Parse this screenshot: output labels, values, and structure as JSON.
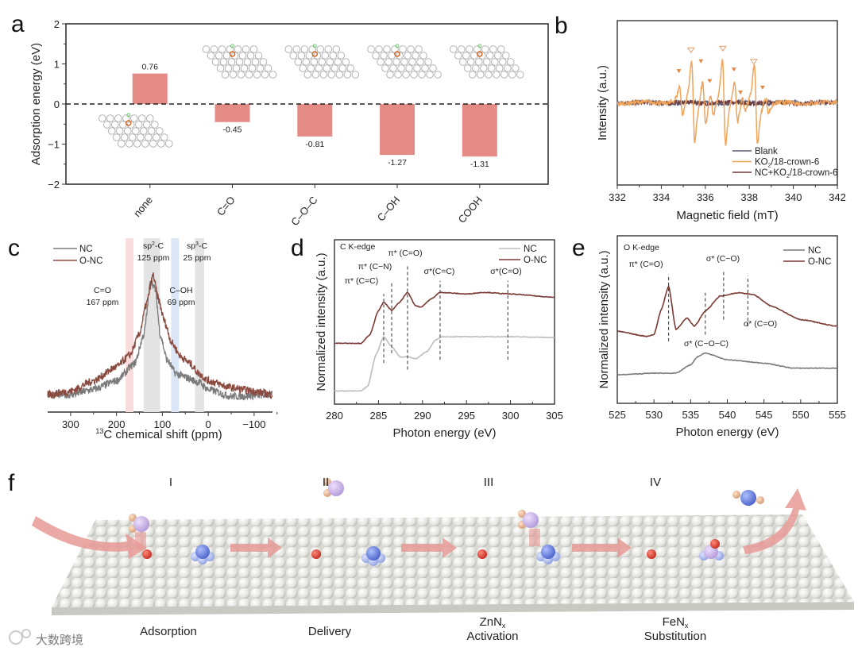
{
  "panel_letters": {
    "a": "a",
    "b": "b",
    "c": "c",
    "d": "d",
    "e": "e",
    "f": "f"
  },
  "colors": {
    "bar": "#e58b86",
    "nc_c": "#7b7b7b",
    "onc_c": "#8a4a40",
    "nc_d": "#bdbdbd",
    "onc_d": "#7a3933",
    "blank": "#5d5a78",
    "ko2": "#f0a35a",
    "nc_ko2": "#6e3b3b",
    "arrow": "#e89a96"
  },
  "chart_data": [
    {
      "id": "a",
      "type": "bar",
      "categories": [
        "none",
        "C=O",
        "C–O–C",
        "C–OH",
        "COOH"
      ],
      "values": [
        0.76,
        -0.45,
        -0.81,
        -1.27,
        -1.31
      ],
      "value_labels": [
        "0.76",
        "-0.45",
        "-0.81",
        "-1.27",
        "-1.31"
      ],
      "ylabel": "Adsorption energy (eV)",
      "ylim": [
        -2,
        2
      ],
      "yticks": [
        "−2",
        "−1",
        "0",
        "1",
        "2"
      ],
      "reference_line": 0
    },
    {
      "id": "b",
      "type": "line",
      "xlabel": "Magnetic field (mT)",
      "ylabel": "Intensity (a.u.)",
      "xlim": [
        332,
        342
      ],
      "ylim": [
        -1,
        1
      ],
      "xticks": [
        "332",
        "334",
        "336",
        "338",
        "340",
        "342"
      ],
      "series": [
        {
          "name": "Blank",
          "name_parts": [
            "Blank",
            "",
            ""
          ],
          "color_key": "blank",
          "lines": []
        },
        {
          "name": "KO2/18-crown-6",
          "name_parts": [
            "KO",
            "2",
            "/18-crown-6"
          ],
          "color_key": "ko2",
          "lines": [
            [
              334.9,
              0.28
            ],
            [
              335.45,
              0.78
            ],
            [
              335.95,
              0.42
            ],
            [
              336.3,
              0.2
            ],
            [
              336.85,
              0.8
            ],
            [
              337.4,
              0.4
            ],
            [
              337.75,
              0.14
            ],
            [
              338.3,
              0.74
            ],
            [
              338.8,
              0.16
            ]
          ]
        },
        {
          "name": "NC+KO2/18-crown-6",
          "name_parts": [
            "NC+KO",
            "2",
            "/18-crown-6"
          ],
          "color_key": "nc_ko2",
          "lines": []
        }
      ],
      "markers_filled": [
        [
          334.8,
          0.38
        ],
        [
          335.8,
          0.5
        ],
        [
          336.2,
          0.26
        ],
        [
          337.3,
          0.4
        ],
        [
          337.6,
          0.12
        ],
        [
          338.6,
          0.18
        ]
      ],
      "markers_open": [
        [
          335.35,
          0.64
        ],
        [
          336.8,
          0.66
        ],
        [
          338.2,
          0.5
        ]
      ]
    },
    {
      "id": "c",
      "type": "line",
      "xlabel_sup": "13",
      "xlabel": "C chemical shift (ppm)",
      "xlim": [
        350,
        -140
      ],
      "ylim": [
        0,
        1
      ],
      "xticks": [
        [
          "300",
          300
        ],
        [
          "200",
          200
        ],
        [
          "100",
          100
        ],
        [
          "0",
          0
        ],
        [
          "−100",
          -100
        ]
      ],
      "legend": [
        "NC",
        "O-NC"
      ],
      "bands": [
        {
          "name": "C=O",
          "value": "167 ppm",
          "range": [
            163,
            180
          ],
          "color": "#f9dcdc",
          "text_color": "#e8a7a2"
        },
        {
          "name_parts": [
            "sp",
            "2",
            "-C"
          ],
          "value": "125 ppm",
          "range": [
            105,
            141
          ],
          "color": "#e4e4e4",
          "text_color": "#222"
        },
        {
          "name": "C–OH",
          "value": "69 ppm",
          "range": [
            64,
            81
          ],
          "color": "#dbe6f7",
          "text_color": "#8fb2d8"
        },
        {
          "name_parts": [
            "sp",
            "3",
            "-C"
          ],
          "value": "25 ppm",
          "range": [
            9,
            29
          ],
          "color": "#e4e4e4",
          "text_color": "#222"
        }
      ],
      "series": [
        {
          "name": "NC",
          "color_key": "nc_c",
          "points": [
            [
              350,
              0.1
            ],
            [
              300,
              0.1
            ],
            [
              250,
              0.13
            ],
            [
              200,
              0.18
            ],
            [
              160,
              0.28
            ],
            [
              140,
              0.45
            ],
            [
              125,
              0.76
            ],
            [
              115,
              0.7
            ],
            [
              105,
              0.45
            ],
            [
              90,
              0.3
            ],
            [
              70,
              0.22
            ],
            [
              50,
              0.2
            ],
            [
              20,
              0.17
            ],
            [
              0,
              0.13
            ],
            [
              -50,
              0.09
            ],
            [
              -140,
              0.1
            ]
          ]
        },
        {
          "name": "O-NC",
          "color_key": "onc_c",
          "points": [
            [
              350,
              0.1
            ],
            [
              300,
              0.12
            ],
            [
              250,
              0.18
            ],
            [
              200,
              0.26
            ],
            [
              170,
              0.33
            ],
            [
              150,
              0.45
            ],
            [
              135,
              0.62
            ],
            [
              120,
              0.79
            ],
            [
              110,
              0.66
            ],
            [
              95,
              0.52
            ],
            [
              80,
              0.4
            ],
            [
              60,
              0.32
            ],
            [
              40,
              0.28
            ],
            [
              20,
              0.22
            ],
            [
              0,
              0.18
            ],
            [
              -50,
              0.14
            ],
            [
              -100,
              0.12
            ],
            [
              -140,
              0.1
            ]
          ]
        }
      ]
    },
    {
      "id": "d",
      "type": "line",
      "xlabel": "Photon energy (eV)",
      "ylabel": "Normalized intensity (a.u.)",
      "xlim": [
        280,
        305
      ],
      "ylim": [
        0,
        1
      ],
      "xticks": [
        "280",
        "285",
        "290",
        "295",
        "300",
        "305"
      ],
      "title": "C K-edge",
      "legend": [
        "NC",
        "O-NC"
      ],
      "series": [
        {
          "name": "NC",
          "color_key": "nc_d",
          "points": [
            [
              280,
              0.08
            ],
            [
              283,
              0.08
            ],
            [
              283.8,
              0.11
            ],
            [
              284.7,
              0.3
            ],
            [
              285.6,
              0.41
            ],
            [
              286.5,
              0.35
            ],
            [
              287.5,
              0.285
            ],
            [
              288.3,
              0.29
            ],
            [
              289.2,
              0.275
            ],
            [
              290.5,
              0.32
            ],
            [
              291.5,
              0.39
            ],
            [
              292.2,
              0.41
            ],
            [
              295,
              0.41
            ],
            [
              300,
              0.41
            ],
            [
              305,
              0.405
            ]
          ]
        },
        {
          "name": "O-NC",
          "color_key": "onc_d",
          "points": [
            [
              280,
              0.37
            ],
            [
              283,
              0.37
            ],
            [
              284,
              0.42
            ],
            [
              285,
              0.57
            ],
            [
              285.6,
              0.62
            ],
            [
              286.5,
              0.57
            ],
            [
              287.4,
              0.62
            ],
            [
              288.3,
              0.68
            ],
            [
              289.2,
              0.6
            ],
            [
              289.8,
              0.59
            ],
            [
              291,
              0.64
            ],
            [
              292,
              0.68
            ],
            [
              295,
              0.67
            ],
            [
              297,
              0.68
            ],
            [
              300,
              0.67
            ],
            [
              305,
              0.65
            ]
          ]
        }
      ],
      "dashed_lines": [
        [
          285.6,
          0.25,
          0.67
        ],
        [
          286.5,
          0.31,
          0.74
        ],
        [
          288.3,
          0.21,
          0.85
        ],
        [
          292,
          0.27,
          0.75
        ],
        [
          299.7,
          0.27,
          0.75
        ]
      ],
      "annotations": [
        "π* (C=O)",
        "π* (C−N)",
        "π* (C=C)",
        "σ*(C=C)",
        "σ*(C=O)"
      ]
    },
    {
      "id": "e",
      "type": "line",
      "xlabel": "Photon energy (eV)",
      "ylabel": "Normalized intensity (a.u.)",
      "xlim": [
        525,
        555
      ],
      "ylim": [
        0,
        1
      ],
      "xticks": [
        "525",
        "530",
        "535",
        "540",
        "545",
        "550",
        "555"
      ],
      "title": "O K-edge",
      "legend": [
        "NC",
        "O-NC"
      ],
      "series": [
        {
          "name": "NC",
          "color_key": "nc_c",
          "points": [
            [
              525,
              0.17
            ],
            [
              530,
              0.18
            ],
            [
              533,
              0.18
            ],
            [
              535,
              0.23
            ],
            [
              536,
              0.28
            ],
            [
              537,
              0.3
            ],
            [
              540,
              0.26
            ],
            [
              545,
              0.24
            ],
            [
              549,
              0.21
            ],
            [
              555,
              0.21
            ]
          ]
        },
        {
          "name": "O-NC",
          "color_key": "onc_d",
          "points": [
            [
              525,
              0.43
            ],
            [
              529,
              0.4
            ],
            [
              530,
              0.41
            ],
            [
              531,
              0.56
            ],
            [
              532,
              0.7
            ],
            [
              533,
              0.44
            ],
            [
              534.5,
              0.51
            ],
            [
              535.5,
              0.46
            ],
            [
              537,
              0.55
            ],
            [
              539,
              0.64
            ],
            [
              541.5,
              0.66
            ],
            [
              543.5,
              0.65
            ],
            [
              546,
              0.58
            ],
            [
              550,
              0.5
            ],
            [
              555,
              0.46
            ]
          ]
        }
      ],
      "dashed_lines": [
        [
          532,
          0.37,
          0.77
        ],
        [
          537,
          0.41,
          0.66
        ],
        [
          539.5,
          0.5,
          0.79
        ],
        [
          542.8,
          0.46,
          0.76
        ]
      ],
      "annotations": [
        "π* (C=O)",
        "σ* (C−O)",
        "σ* (C=O)",
        "σ* (C−O−C)"
      ]
    }
  ],
  "scheme": {
    "steps": [
      {
        "numeral": "I",
        "label": "Adsorption",
        "label2": ""
      },
      {
        "numeral": "II",
        "label": "Delivery",
        "label2": ""
      },
      {
        "numeral": "III",
        "label": "ZnN",
        "sub": "x",
        "label2": "Activation"
      },
      {
        "numeral": "IV",
        "label": "FeN",
        "sub": "x",
        "label2": "Substitution"
      }
    ]
  },
  "watermark": "大数跨境"
}
